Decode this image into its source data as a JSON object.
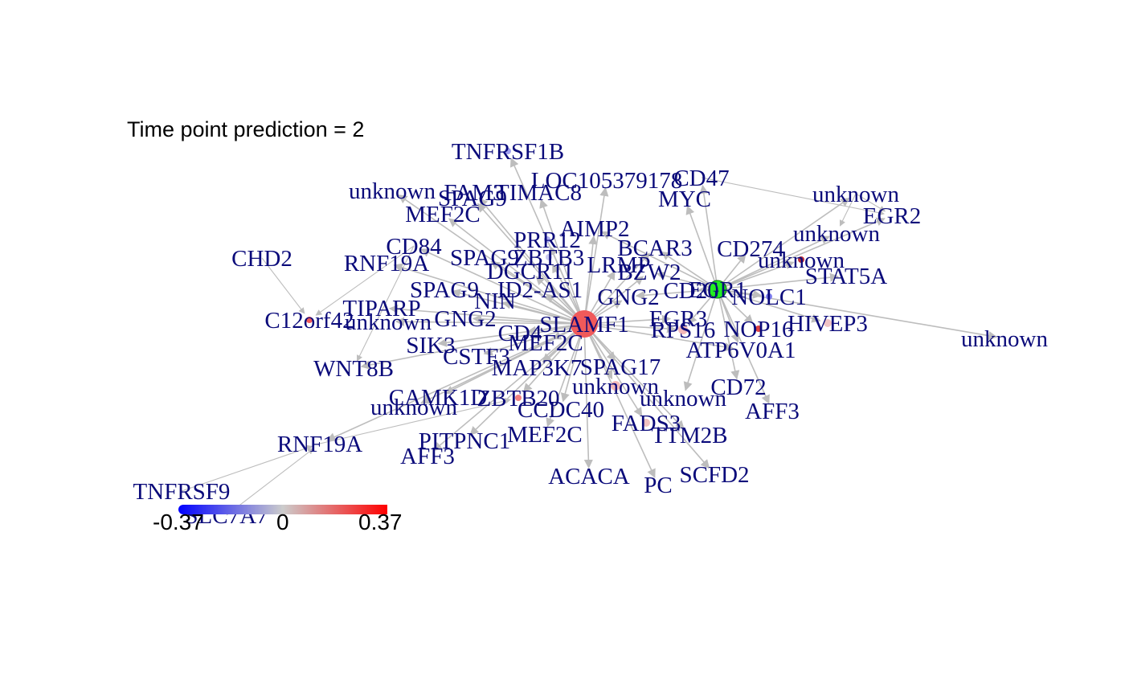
{
  "title": "Time point prediction = 2",
  "legend": {
    "min_label": "-0.37",
    "mid_label": "0",
    "max_label": "0.37",
    "colors": [
      "#0000ff",
      "#cccccc",
      "#ff0000"
    ]
  },
  "colors": {
    "edge": "#bdbdbd",
    "label": "#0a0a7a",
    "hub_node": "#f05a5a",
    "target_node": "#22ee22"
  },
  "nodes": [
    {
      "id": "n1",
      "label": "TNFRSF1B"
    },
    {
      "id": "n2",
      "label": "LOC105379178"
    },
    {
      "id": "n3",
      "label": "CD47"
    },
    {
      "id": "n4",
      "label": "MYC"
    },
    {
      "id": "n5",
      "label": "unknown"
    },
    {
      "id": "n6",
      "label": "FAM3"
    },
    {
      "id": "n7",
      "label": "TIMAC8"
    },
    {
      "id": "n8",
      "label": "SPAG9"
    },
    {
      "id": "n9",
      "label": "unknown"
    },
    {
      "id": "n10",
      "label": "EGR2"
    },
    {
      "id": "n11",
      "label": "MEF2C"
    },
    {
      "id": "n12",
      "label": "AIMP2"
    },
    {
      "id": "n13",
      "label": "unknown"
    },
    {
      "id": "n14",
      "label": "PRR12"
    },
    {
      "id": "n15",
      "label": "BCAR3"
    },
    {
      "id": "n16",
      "label": "CD274"
    },
    {
      "id": "n17",
      "label": "CD84"
    },
    {
      "id": "n18",
      "label": "CHD2"
    },
    {
      "id": "n19",
      "label": "RNF19A"
    },
    {
      "id": "n20",
      "label": "SPAG9"
    },
    {
      "id": "n21",
      "label": "ZBTB3"
    },
    {
      "id": "n22",
      "label": "unknown"
    },
    {
      "id": "n23",
      "label": "DGCR11"
    },
    {
      "id": "n24",
      "label": "LRMP"
    },
    {
      "id": "n25",
      "label": "BZW2"
    },
    {
      "id": "n26",
      "label": "STAT5A"
    },
    {
      "id": "n27",
      "label": "SPAG9"
    },
    {
      "id": "n28",
      "label": "ID2-AS1"
    },
    {
      "id": "n29",
      "label": "GNG2"
    },
    {
      "id": "n30",
      "label": "CD20"
    },
    {
      "id": "n31",
      "label": "EGR1"
    },
    {
      "id": "n32",
      "label": "NOLC1"
    },
    {
      "id": "n33",
      "label": "NIN"
    },
    {
      "id": "n34",
      "label": "TIPARP"
    },
    {
      "id": "n35",
      "label": "GNG2"
    },
    {
      "id": "n36",
      "label": "C12orf42"
    },
    {
      "id": "n37",
      "label": "unknown"
    },
    {
      "id": "n38",
      "label": "EGR3"
    },
    {
      "id": "n39",
      "label": "SLAMF1"
    },
    {
      "id": "n40",
      "label": "RPS16"
    },
    {
      "id": "n41",
      "label": "NOP16"
    },
    {
      "id": "n42",
      "label": "HIVEP3"
    },
    {
      "id": "n43",
      "label": "unknown"
    },
    {
      "id": "n44",
      "label": "CD4"
    },
    {
      "id": "n45",
      "label": "SIK3"
    },
    {
      "id": "n46",
      "label": "MEF2C"
    },
    {
      "id": "n47",
      "label": "CSTF3"
    },
    {
      "id": "n48",
      "label": "ATP6V0A1"
    },
    {
      "id": "n49",
      "label": "WNT8B"
    },
    {
      "id": "n50",
      "label": "MAP3K7"
    },
    {
      "id": "n51",
      "label": "SPAG17"
    },
    {
      "id": "n52",
      "label": "unknown"
    },
    {
      "id": "n53",
      "label": "CD72"
    },
    {
      "id": "n54",
      "label": "CAMK1D"
    },
    {
      "id": "n55",
      "label": "ZBTB20"
    },
    {
      "id": "n56",
      "label": "unknown"
    },
    {
      "id": "n57",
      "label": "unknown"
    },
    {
      "id": "n58",
      "label": "AFF3"
    },
    {
      "id": "n59",
      "label": "CCDC40"
    },
    {
      "id": "n60",
      "label": "FADS3"
    },
    {
      "id": "n61",
      "label": "TTM2B"
    },
    {
      "id": "n62",
      "label": "RNF19A"
    },
    {
      "id": "n63",
      "label": "PITPNC1"
    },
    {
      "id": "n64",
      "label": "MEF2C"
    },
    {
      "id": "n65",
      "label": "AFF3"
    },
    {
      "id": "n66",
      "label": "ACACA"
    },
    {
      "id": "n67",
      "label": "PC"
    },
    {
      "id": "n68",
      "label": "SCFD2"
    },
    {
      "id": "n69",
      "label": "TNFRSF9"
    },
    {
      "id": "n70",
      "label": "SLC7A7"
    }
  ]
}
